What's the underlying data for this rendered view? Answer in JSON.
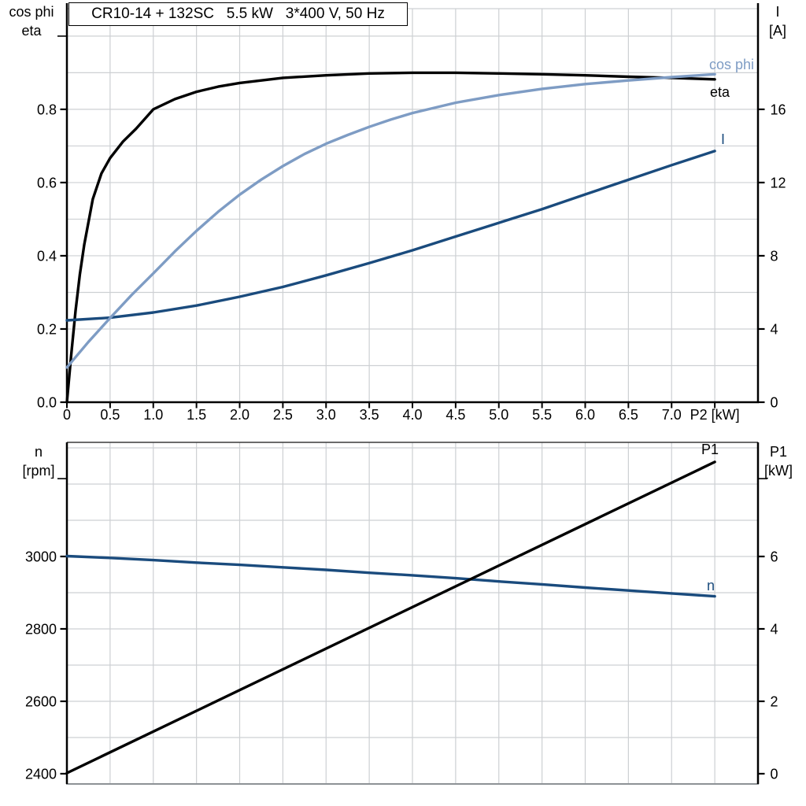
{
  "colors": {
    "black": "#000000",
    "light_blue": "#7E9CC4",
    "dark_blue": "#1A4B7D",
    "grid": "#cdd0d3",
    "bottom_frame_gray": "#8d9296",
    "top_frame_b": "#3a3a3a",
    "background": "#ffffff"
  },
  "chart_data": [
    {
      "type": "line",
      "title": "CR10-14 + 132SC   5.5 kW   3*400 V, 50 Hz",
      "xlabel": "P2 [kW]",
      "xlim": [
        0,
        8
      ],
      "x_grid_step": 0.5,
      "x_tick_values": [
        0,
        0.5,
        1,
        1.5,
        2,
        2.5,
        3,
        3.5,
        4,
        4.5,
        5,
        5.5,
        6,
        6.5,
        7,
        7.5
      ],
      "x_tick_labels": [
        "0",
        "0.5",
        "1.0",
        "1.5",
        "2.0",
        "2.5",
        "3.0",
        "3.5",
        "4.0",
        "4.5",
        "5.0",
        "5.5",
        "6.0",
        "6.5",
        "7.0",
        ""
      ],
      "grid": true,
      "legend_position": "curve-end-labels",
      "axes": {
        "left": {
          "header": [
            "cos phi",
            "eta"
          ],
          "range": [
            0,
            1.075
          ],
          "grid_min": 0.1,
          "grid_max": 1.0,
          "grid_step": 0.1,
          "tick_values": [
            0,
            0.2,
            0.4,
            0.6,
            0.8
          ],
          "tick_labels": [
            "0.0",
            "0.2",
            "0.4",
            "0.6",
            "0.8"
          ],
          "end_tick_value": 1.0
        },
        "right": {
          "header": [
            "I",
            "[A]"
          ],
          "range": [
            0,
            21.5
          ],
          "tick_values": [
            0,
            4,
            8,
            12,
            16
          ],
          "tick_labels": [
            "0",
            "4",
            "8",
            "12",
            "16"
          ]
        }
      },
      "series": [
        {
          "name": "cos phi",
          "axis": "left",
          "color": "#7E9CC4",
          "x": [
            0,
            0.25,
            0.5,
            0.75,
            1,
            1.25,
            1.5,
            1.75,
            2,
            2.25,
            2.5,
            2.75,
            3,
            3.25,
            3.5,
            3.75,
            4,
            4.5,
            5,
            5.5,
            6,
            6.5,
            7,
            7.5
          ],
          "values": [
            0.095,
            0.165,
            0.23,
            0.293,
            0.352,
            0.412,
            0.468,
            0.52,
            0.567,
            0.608,
            0.645,
            0.678,
            0.706,
            0.73,
            0.752,
            0.772,
            0.79,
            0.818,
            0.839,
            0.856,
            0.869,
            0.879,
            0.888,
            0.896
          ]
        },
        {
          "name": "eta",
          "axis": "left",
          "color": "#000000",
          "x": [
            0,
            0.05,
            0.1,
            0.15,
            0.2,
            0.3,
            0.4,
            0.5,
            0.65,
            0.8,
            1,
            1.25,
            1.5,
            1.75,
            2,
            2.5,
            3,
            3.5,
            4,
            4.5,
            5,
            5.5,
            6,
            6.5,
            7,
            7.5
          ],
          "values": [
            0,
            0.13,
            0.25,
            0.35,
            0.43,
            0.555,
            0.625,
            0.667,
            0.712,
            0.747,
            0.8,
            0.828,
            0.848,
            0.862,
            0.872,
            0.886,
            0.893,
            0.898,
            0.9,
            0.9,
            0.898,
            0.896,
            0.893,
            0.889,
            0.886,
            0.882
          ]
        },
        {
          "name": "I",
          "axis": "right",
          "color": "#1A4B7D",
          "x": [
            0,
            0.5,
            1,
            1.5,
            2,
            2.5,
            3,
            3.5,
            4,
            4.5,
            5,
            5.5,
            6,
            6.5,
            7,
            7.5
          ],
          "values": [
            4.47,
            4.62,
            4.9,
            5.28,
            5.76,
            6.3,
            6.93,
            7.6,
            8.3,
            9.05,
            9.8,
            10.55,
            11.35,
            12.15,
            12.95,
            13.72
          ]
        }
      ]
    },
    {
      "type": "line",
      "title": "",
      "xlabel": "",
      "xlim": [
        0,
        8
      ],
      "x_grid_step": 0.5,
      "x_tick_values": [],
      "x_tick_labels": [],
      "grid": true,
      "legend_position": "curve-end-labels",
      "axes": {
        "left": {
          "header": [
            "n",
            "[rpm]"
          ],
          "range": [
            2371.7,
            3315.2
          ],
          "grid_min": 2500,
          "grid_max": 3300,
          "grid_step": 100,
          "tick_values": [
            2400,
            2600,
            2800,
            3000
          ],
          "tick_labels": [
            "2400",
            "2600",
            "2800",
            "3000"
          ],
          "end_tick_value": 3215
        },
        "right": {
          "header": [
            "P1",
            "[kW]"
          ],
          "range": [
            -0.283,
            9.152
          ],
          "tick_values": [
            0,
            2,
            4,
            6
          ],
          "tick_labels": [
            "0",
            "2",
            "4",
            "6"
          ],
          "end_tick_value": 8.15
        }
      },
      "series": [
        {
          "name": "n",
          "axis": "left",
          "color": "#1A4B7D",
          "x": [
            0,
            0.5,
            1,
            1.5,
            2,
            2.5,
            3,
            3.5,
            4,
            4.5,
            5,
            5.5,
            6,
            6.5,
            7,
            7.5
          ],
          "values": [
            3001,
            2996,
            2990,
            2983,
            2977,
            2970,
            2963,
            2955,
            2948,
            2940,
            2931,
            2923,
            2914,
            2906,
            2898,
            2890
          ]
        },
        {
          "name": "P1",
          "axis": "right",
          "color": "#000000",
          "x": [
            0,
            7.5
          ],
          "values": [
            0.02,
            8.61
          ]
        }
      ]
    }
  ]
}
